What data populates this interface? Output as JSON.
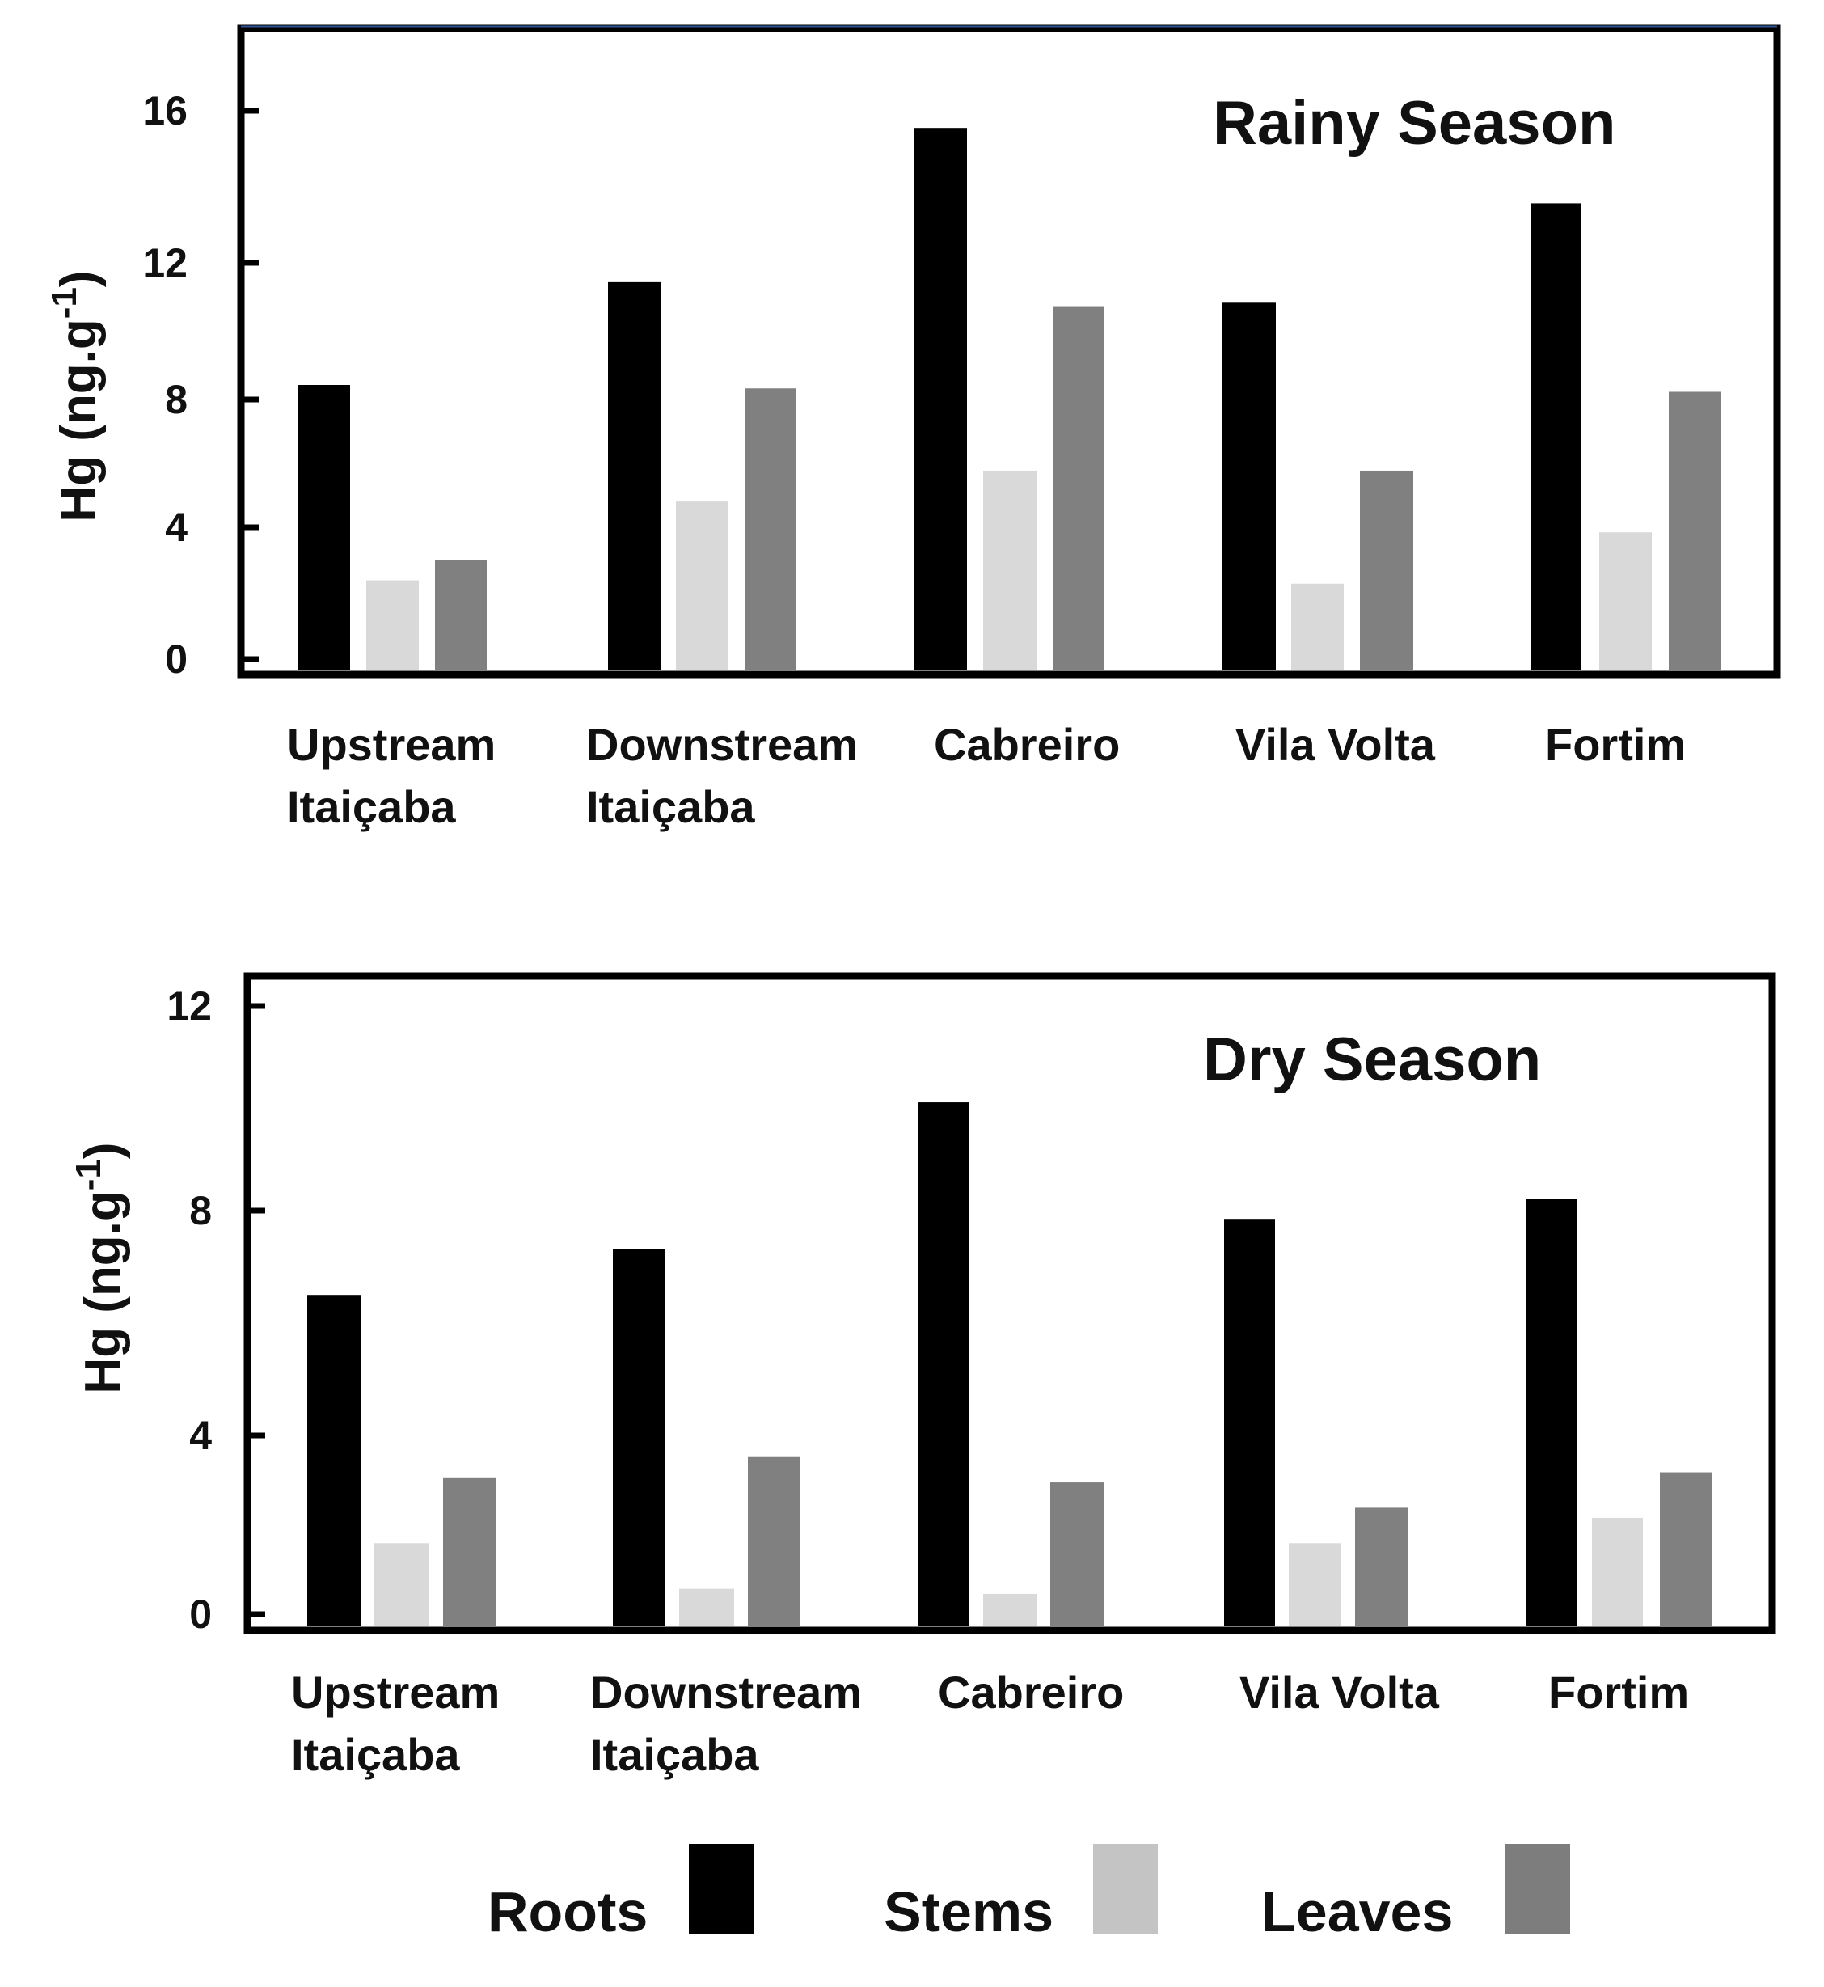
{
  "chart_data": [
    {
      "type": "bar",
      "title": "Rainy Season",
      "ylabel": "Hg (ng.g-1)",
      "ylabel_base": "Hg (ng.g",
      "ylabel_sup": "-1",
      "ylabel_close": ")",
      "ylim": [
        0,
        18
      ],
      "yticks": [
        0,
        4,
        8,
        12,
        16
      ],
      "categories": [
        [
          "Upstream",
          "Itaiçaba"
        ],
        [
          "Downstream",
          "Itaiçaba"
        ],
        [
          "Cabreiro"
        ],
        [
          "Vila Volta"
        ],
        [
          "Fortim"
        ]
      ],
      "series": [
        {
          "name": "Roots",
          "values": [
            8.0,
            11.0,
            15.5,
            10.4,
            13.3
          ]
        },
        {
          "name": "Stems",
          "values": [
            2.3,
            4.6,
            5.5,
            2.2,
            3.7
          ]
        },
        {
          "name": "Leaves",
          "values": [
            2.9,
            7.9,
            10.3,
            5.5,
            7.8
          ]
        }
      ]
    },
    {
      "type": "bar",
      "title": "Dry Season",
      "ylabel": "Hg (ng.g-1)",
      "ylabel_base": "Hg (ng.g",
      "ylabel_sup": "-1",
      "ylabel_close": ")",
      "ylim": [
        0,
        13
      ],
      "yticks": [
        0,
        4,
        8,
        12
      ],
      "categories": [
        [
          "Upstream",
          "Itaiçaba"
        ],
        [
          "Downstream",
          "Itaiçaba"
        ],
        [
          "Cabreiro"
        ],
        [
          "Vila Volta"
        ],
        [
          "Fortim"
        ]
      ],
      "series": [
        {
          "name": "Roots",
          "values": [
            6.3,
            7.2,
            10.1,
            7.8,
            8.2
          ]
        },
        {
          "name": "Stems",
          "values": [
            1.4,
            0.5,
            0.4,
            1.4,
            1.9
          ]
        },
        {
          "name": "Leaves",
          "values": [
            2.7,
            3.1,
            2.6,
            2.1,
            2.8
          ]
        }
      ]
    }
  ],
  "legend": {
    "items": [
      {
        "label": "Roots",
        "color": "#000000"
      },
      {
        "label": "Stems",
        "color": "#c4c4c4"
      },
      {
        "label": "Leaves",
        "color": "#7d7d7d"
      }
    ]
  },
  "colors": {
    "bar_fills": [
      "#000000",
      "#d9d9d9",
      "#808080"
    ],
    "frame": "#000000",
    "top_border": "#2f5597"
  }
}
